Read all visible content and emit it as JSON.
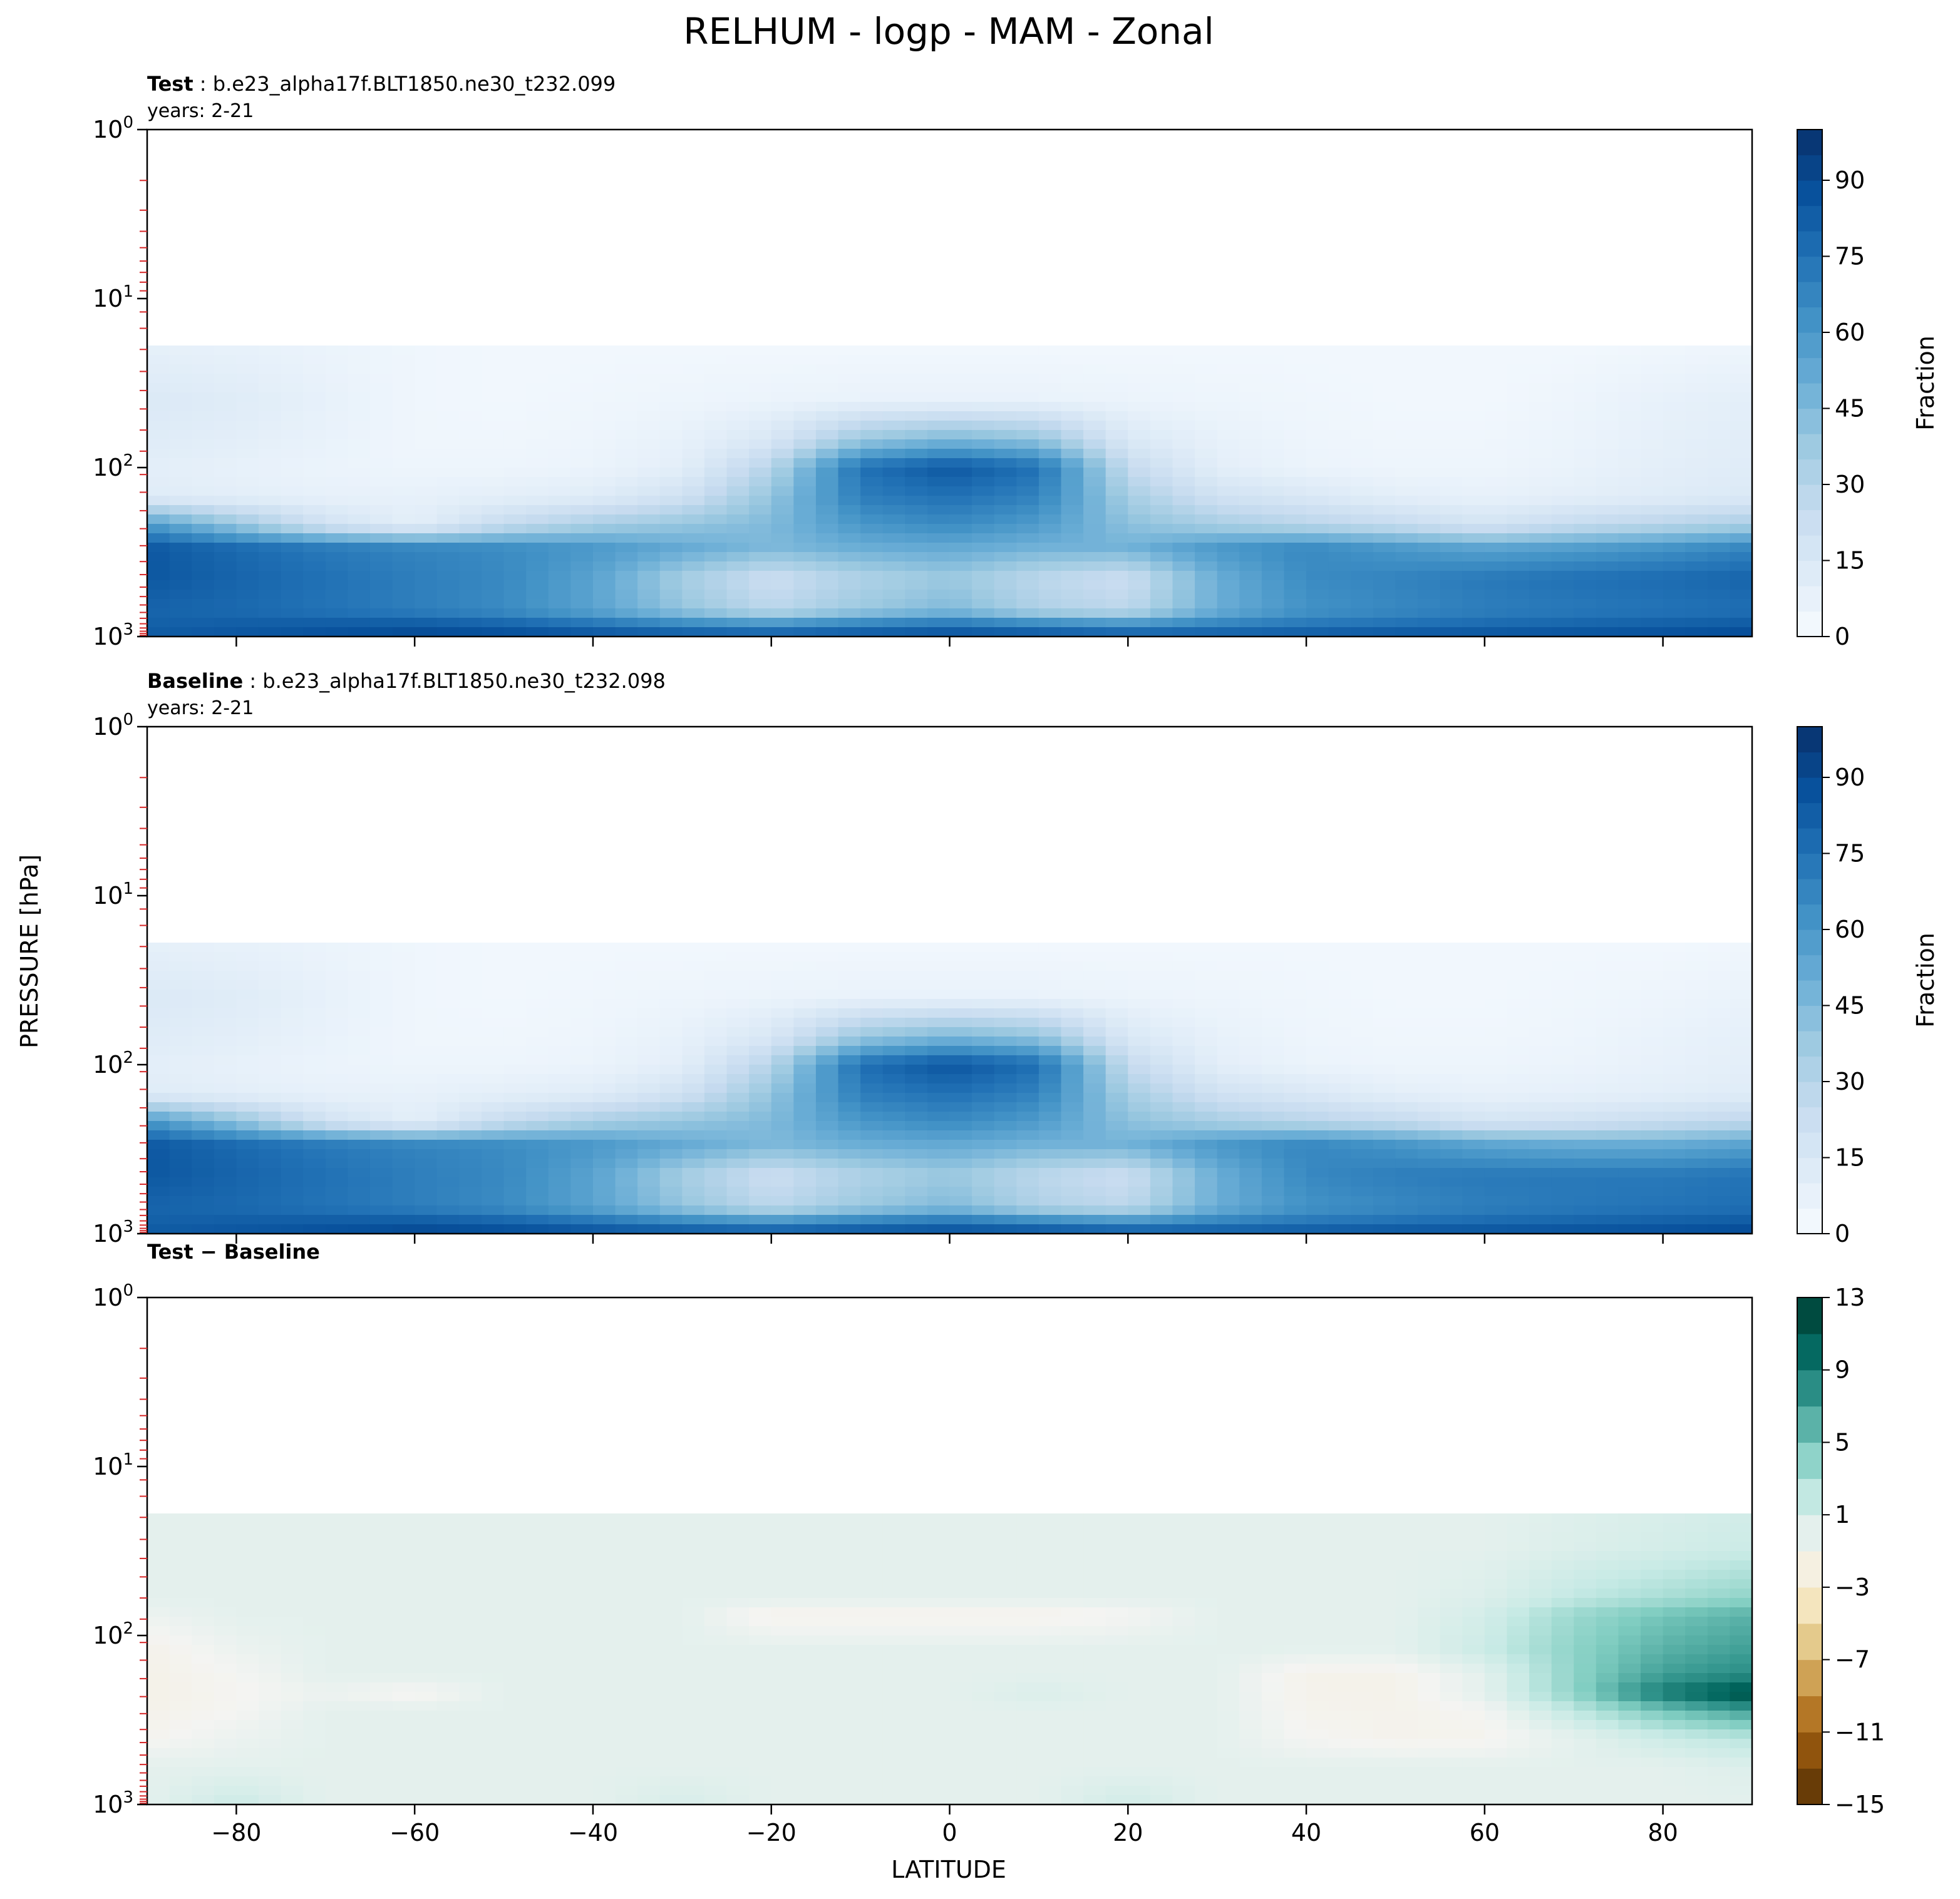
{
  "figure": {
    "title": "RELHUM - logp - MAM - Zonal",
    "shared_xlabel": "LATITUDE",
    "shared_ylabel": "PRESSURE [hPa]"
  },
  "chart_data": [
    {
      "type": "heatmap",
      "panel": "test",
      "label_bold": "Test",
      "label_rest": ": b.e23_alpha17f.BLT1850.ne30_t232.099",
      "subtitle": "years: 2-21",
      "x_ticks": [
        -80,
        -60,
        -40,
        -20,
        0,
        20,
        40,
        60,
        80
      ],
      "xlim": [
        -90,
        90
      ],
      "ylim": [
        1000,
        1
      ],
      "yscale": "log",
      "y_ticks": [
        {
          "value": 1,
          "base": "10",
          "exp": "0"
        },
        {
          "value": 10,
          "base": "10",
          "exp": "1"
        },
        {
          "value": 100,
          "base": "10",
          "exp": "2"
        },
        {
          "value": 1000,
          "base": "10",
          "exp": "3"
        }
      ],
      "colorbar": {
        "label": "Fraction",
        "ticks": [
          "0",
          "15",
          "30",
          "45",
          "60",
          "75",
          "90"
        ],
        "range": [
          0,
          100
        ],
        "colormap": "Blues"
      },
      "lat_grid": [
        -90,
        -80,
        -70,
        -60,
        -50,
        -40,
        -30,
        -20,
        -10,
        0,
        10,
        20,
        30,
        40,
        50,
        60,
        70,
        80,
        90
      ],
      "profiles": [
        {
          "p": 5,
          "values": [
            0,
            0,
            0,
            0,
            0,
            0,
            0,
            0,
            0,
            0,
            0,
            0,
            0,
            0,
            0,
            0,
            0,
            0,
            0
          ]
        },
        {
          "p": 20,
          "values": [
            9,
            8,
            6,
            4,
            3,
            3,
            3,
            3,
            3,
            3,
            3,
            3,
            3,
            3,
            3,
            3,
            3,
            4,
            5
          ]
        },
        {
          "p": 40,
          "values": [
            14,
            12,
            8,
            4,
            3,
            4,
            5,
            6,
            7,
            7,
            7,
            6,
            5,
            4,
            3,
            3,
            5,
            8,
            10
          ]
        },
        {
          "p": 70,
          "values": [
            12,
            10,
            7,
            4,
            4,
            5,
            8,
            16,
            40,
            48,
            42,
            15,
            8,
            5,
            4,
            4,
            6,
            9,
            11
          ]
        },
        {
          "p": 100,
          "values": [
            10,
            8,
            6,
            5,
            5,
            6,
            10,
            30,
            75,
            85,
            75,
            25,
            10,
            6,
            5,
            5,
            7,
            10,
            12
          ]
        },
        {
          "p": 150,
          "values": [
            12,
            10,
            8,
            8,
            10,
            12,
            20,
            40,
            70,
            75,
            68,
            35,
            20,
            15,
            10,
            8,
            10,
            12,
            14
          ]
        },
        {
          "p": 220,
          "values": [
            60,
            40,
            20,
            10,
            25,
            35,
            40,
            45,
            60,
            65,
            58,
            42,
            35,
            30,
            25,
            18,
            25,
            30,
            35
          ]
        },
        {
          "p": 300,
          "values": [
            85,
            78,
            72,
            68,
            65,
            60,
            52,
            45,
            50,
            52,
            48,
            48,
            60,
            66,
            60,
            55,
            58,
            62,
            68
          ]
        },
        {
          "p": 450,
          "values": [
            85,
            80,
            75,
            70,
            66,
            55,
            35,
            22,
            32,
            38,
            28,
            22,
            50,
            65,
            68,
            72,
            75,
            77,
            80
          ]
        },
        {
          "p": 700,
          "values": [
            80,
            78,
            74,
            70,
            65,
            55,
            40,
            28,
            38,
            45,
            32,
            28,
            50,
            62,
            66,
            70,
            72,
            74,
            76
          ]
        },
        {
          "p": 900,
          "values": [
            82,
            84,
            86,
            88,
            85,
            80,
            75,
            72,
            78,
            82,
            78,
            72,
            74,
            76,
            78,
            80,
            82,
            84,
            86
          ]
        },
        {
          "p": 1000,
          "values": [
            85,
            86,
            88,
            90,
            90,
            88,
            86,
            84,
            85,
            86,
            85,
            84,
            86,
            88,
            90,
            90,
            90,
            90,
            92
          ]
        }
      ]
    },
    {
      "type": "heatmap",
      "panel": "baseline",
      "label_bold": "Baseline",
      "label_rest": ": b.e23_alpha17f.BLT1850.ne30_t232.098",
      "subtitle": "years: 2-21",
      "x_ticks": [
        -80,
        -60,
        -40,
        -20,
        0,
        20,
        40,
        60,
        80
      ],
      "xlim": [
        -90,
        90
      ],
      "ylim": [
        1000,
        1
      ],
      "yscale": "log",
      "y_ticks": [
        {
          "value": 1,
          "base": "10",
          "exp": "0"
        },
        {
          "value": 10,
          "base": "10",
          "exp": "1"
        },
        {
          "value": 100,
          "base": "10",
          "exp": "2"
        },
        {
          "value": 1000,
          "base": "10",
          "exp": "3"
        }
      ],
      "colorbar": {
        "label": "Fraction",
        "ticks": [
          "0",
          "15",
          "30",
          "45",
          "60",
          "75",
          "90"
        ],
        "range": [
          0,
          100
        ],
        "colormap": "Blues"
      },
      "lat_grid": [
        -90,
        -80,
        -70,
        -60,
        -50,
        -40,
        -30,
        -20,
        -10,
        0,
        10,
        20,
        30,
        40,
        50,
        60,
        70,
        80,
        90
      ],
      "profiles": [
        {
          "p": 5,
          "values": [
            0,
            0,
            0,
            0,
            0,
            0,
            0,
            0,
            0,
            0,
            0,
            0,
            0,
            0,
            0,
            0,
            0,
            0,
            0
          ]
        },
        {
          "p": 20,
          "values": [
            9,
            8,
            6,
            4,
            3,
            3,
            3,
            3,
            3,
            3,
            3,
            3,
            3,
            3,
            3,
            3,
            3,
            3,
            4
          ]
        },
        {
          "p": 40,
          "values": [
            14,
            12,
            8,
            4,
            3,
            4,
            5,
            6,
            7,
            7,
            7,
            6,
            5,
            4,
            3,
            3,
            4,
            5,
            7
          ]
        },
        {
          "p": 70,
          "values": [
            12,
            10,
            7,
            4,
            4,
            5,
            8,
            16,
            40,
            48,
            42,
            15,
            8,
            5,
            4,
            4,
            5,
            7,
            9
          ]
        },
        {
          "p": 100,
          "values": [
            10,
            8,
            6,
            5,
            5,
            6,
            10,
            30,
            76,
            86,
            76,
            25,
            10,
            6,
            5,
            5,
            6,
            8,
            10
          ]
        },
        {
          "p": 150,
          "values": [
            12,
            10,
            8,
            8,
            10,
            12,
            20,
            40,
            70,
            75,
            68,
            35,
            20,
            15,
            10,
            8,
            9,
            10,
            12
          ]
        },
        {
          "p": 220,
          "values": [
            62,
            42,
            20,
            10,
            25,
            35,
            40,
            45,
            60,
            65,
            58,
            42,
            35,
            30,
            26,
            18,
            20,
            24,
            28
          ]
        },
        {
          "p": 300,
          "values": [
            85,
            78,
            72,
            68,
            65,
            60,
            52,
            45,
            50,
            52,
            48,
            48,
            60,
            67,
            62,
            55,
            52,
            52,
            56
          ]
        },
        {
          "p": 450,
          "values": [
            85,
            80,
            75,
            70,
            66,
            55,
            35,
            22,
            32,
            38,
            28,
            22,
            50,
            66,
            70,
            72,
            72,
            72,
            74
          ]
        },
        {
          "p": 700,
          "values": [
            80,
            78,
            74,
            70,
            65,
            55,
            40,
            28,
            38,
            45,
            32,
            28,
            50,
            62,
            66,
            70,
            72,
            74,
            76
          ]
        },
        {
          "p": 900,
          "values": [
            82,
            84,
            86,
            88,
            85,
            80,
            75,
            72,
            78,
            82,
            78,
            72,
            74,
            76,
            78,
            80,
            82,
            84,
            86
          ]
        },
        {
          "p": 1000,
          "values": [
            85,
            86,
            88,
            90,
            90,
            88,
            86,
            84,
            85,
            86,
            85,
            84,
            86,
            88,
            90,
            90,
            90,
            90,
            92
          ]
        }
      ]
    },
    {
      "type": "heatmap",
      "panel": "difference",
      "label_bold": "Test − Baseline",
      "label_rest": "",
      "subtitle": "",
      "x_ticks": [
        -80,
        -60,
        -40,
        -20,
        0,
        20,
        40,
        60,
        80
      ],
      "xlim": [
        -90,
        90
      ],
      "ylim": [
        1000,
        1
      ],
      "yscale": "log",
      "y_ticks": [
        {
          "value": 1,
          "base": "10",
          "exp": "0"
        },
        {
          "value": 10,
          "base": "10",
          "exp": "1"
        },
        {
          "value": 100,
          "base": "10",
          "exp": "2"
        },
        {
          "value": 1000,
          "base": "10",
          "exp": "3"
        }
      ],
      "colorbar": {
        "label": "",
        "ticks": [
          "13",
          "9",
          "5",
          "1",
          "−3",
          "−7",
          "−11",
          "−15"
        ],
        "range": [
          -15,
          13
        ],
        "colormap": "BrBG"
      },
      "lat_grid": [
        -90,
        -80,
        -70,
        -60,
        -50,
        -40,
        -30,
        -20,
        -10,
        0,
        10,
        20,
        30,
        40,
        50,
        60,
        70,
        80,
        90
      ],
      "profiles": [
        {
          "p": 5,
          "values": [
            0,
            0,
            0,
            0,
            0,
            0,
            0,
            0,
            0,
            0,
            0,
            0,
            0,
            0,
            0,
            0,
            0,
            0,
            0
          ]
        },
        {
          "p": 30,
          "values": [
            0,
            0,
            0,
            0,
            0,
            0,
            0,
            0,
            0,
            0,
            0,
            0,
            0,
            0,
            0,
            0,
            0.5,
            1,
            1.5
          ]
        },
        {
          "p": 60,
          "values": [
            0,
            0,
            0,
            0,
            0,
            0,
            0,
            0,
            0,
            0,
            0,
            0,
            0,
            0,
            0,
            0.5,
            2,
            3,
            4
          ]
        },
        {
          "p": 75,
          "values": [
            -0.5,
            0,
            0,
            0,
            0,
            0,
            0,
            -1.4,
            -1.4,
            -1.4,
            -1.4,
            -1,
            0,
            0,
            0,
            1,
            3.5,
            5,
            6
          ]
        },
        {
          "p": 120,
          "values": [
            -1.5,
            -0.5,
            0,
            0,
            0,
            0,
            0,
            0,
            0,
            0,
            0,
            0,
            0,
            0,
            0,
            1.5,
            4,
            6,
            7
          ]
        },
        {
          "p": 170,
          "values": [
            -1.6,
            -1,
            0,
            0,
            0,
            0,
            0,
            0,
            0,
            0,
            0,
            0,
            0,
            -1.5,
            -1.5,
            0,
            4,
            7,
            8
          ]
        },
        {
          "p": 220,
          "values": [
            -1.6,
            -1.1,
            -0.5,
            -1.2,
            0,
            0,
            0,
            0,
            0,
            0,
            0.6,
            0,
            0,
            -1.4,
            -1.5,
            0,
            4,
            9,
            12
          ]
        },
        {
          "p": 280,
          "values": [
            -1.5,
            -1,
            0,
            0,
            0,
            0,
            0,
            0,
            0,
            0,
            0,
            0,
            0,
            -1.3,
            -1.4,
            -1,
            2,
            5,
            7
          ]
        },
        {
          "p": 400,
          "values": [
            -1.2,
            -0.5,
            0,
            0,
            0,
            0,
            0,
            0,
            0,
            0,
            0,
            0,
            0,
            -1,
            -1.4,
            -1.3,
            0,
            1.5,
            2.5
          ]
        },
        {
          "p": 600,
          "values": [
            0,
            0,
            0,
            0,
            0,
            0,
            0,
            0,
            0,
            0,
            0,
            0,
            0,
            0,
            0,
            0,
            0,
            0,
            0.5
          ]
        },
        {
          "p": 1000,
          "values": [
            0,
            1.5,
            0,
            0,
            0,
            0,
            0.8,
            0,
            0,
            0,
            0,
            1.2,
            0,
            0,
            0,
            0,
            0,
            0,
            0
          ]
        }
      ]
    }
  ]
}
